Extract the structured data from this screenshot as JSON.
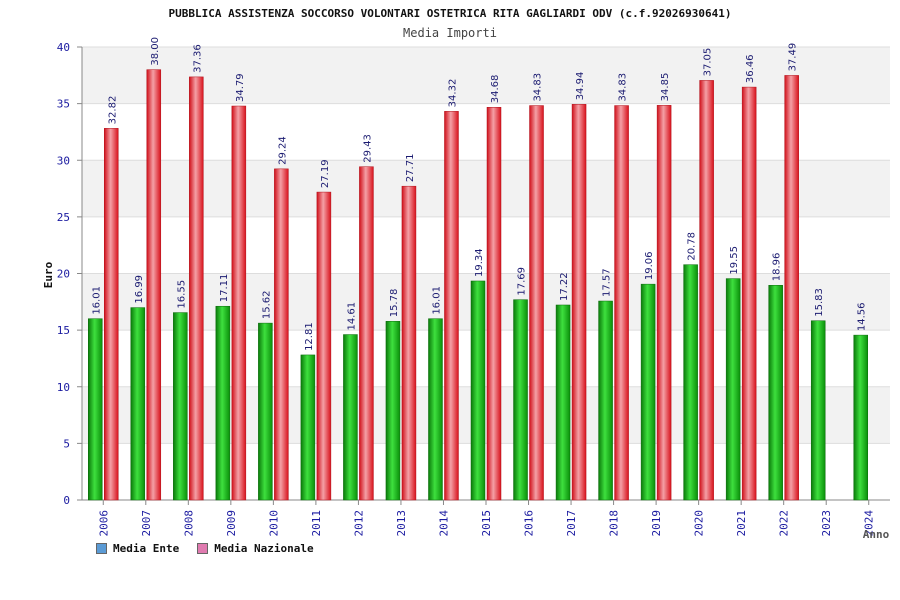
{
  "chart_data": {
    "type": "bar",
    "title": "PUBBLICA ASSISTENZA SOCCORSO VOLONTARI OSTETRICA RITA GAGLIARDI ODV (c.f.92026930641)",
    "subtitle": "Media Importi",
    "xlabel": "Anno",
    "ylabel": "Euro",
    "ylim": [
      0,
      40
    ],
    "yticks": [
      0,
      5,
      10,
      15,
      20,
      25,
      30,
      35,
      40
    ],
    "grid": true,
    "legend_position": "bottom-left",
    "categories": [
      "2006",
      "2007",
      "2008",
      "2009",
      "2010",
      "2011",
      "2012",
      "2013",
      "2014",
      "2015",
      "2016",
      "2017",
      "2018",
      "2019",
      "2020",
      "2021",
      "2022",
      "2023",
      "2024"
    ],
    "series": [
      {
        "name": "Media Ente",
        "color": "#12a512",
        "values": [
          16.01,
          16.99,
          16.55,
          17.11,
          15.62,
          12.81,
          14.61,
          15.78,
          16.01,
          19.34,
          17.69,
          17.22,
          17.57,
          19.06,
          20.78,
          19.55,
          18.96,
          15.83,
          14.56
        ],
        "labels": [
          "16.01",
          "16.99",
          "16.55",
          "17.11",
          "15.62",
          "12.81",
          "14.61",
          "15.78",
          "16.01",
          "19.34",
          "17.69",
          "17.22",
          "17.57",
          "19.06",
          "20.78",
          "19.55",
          "18.96",
          "15.83",
          "14.56"
        ]
      },
      {
        "name": "Media Nazionale",
        "color": "#e8202a",
        "values": [
          32.82,
          38.0,
          37.36,
          34.79,
          29.24,
          27.19,
          29.43,
          27.71,
          34.32,
          34.68,
          34.83,
          34.94,
          34.83,
          34.85,
          37.05,
          36.46,
          37.49,
          null,
          null
        ],
        "labels": [
          "32.82",
          "38.00",
          "37.36",
          "34.79",
          "29.24",
          "27.19",
          "29.43",
          "27.71",
          "34.32",
          "34.68",
          "34.83",
          "34.94",
          "34.83",
          "34.85",
          "37.05",
          "36.46",
          "37.49",
          "",
          ""
        ]
      }
    ]
  },
  "legend": [
    {
      "label": "Media Ente",
      "color": "#5b9bd5"
    },
    {
      "label": "Media Nazionale",
      "color": "#e07bb0"
    }
  ]
}
